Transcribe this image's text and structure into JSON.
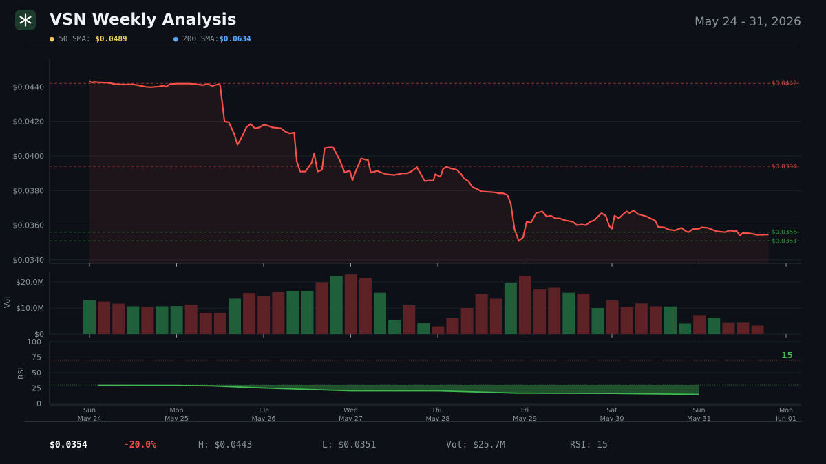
{
  "header": {
    "title": "VSN Weekly Analysis",
    "date_range": "May 24 - 31, 2026",
    "sma50_label": "50 SMA:",
    "sma50_value": "$0.0489",
    "sma200_label": "200 SMA:",
    "sma200_value": "$0.0634",
    "logo_icon": "asterisk-icon"
  },
  "colors": {
    "price_line": "#f85149",
    "up_volume": "#1f5f3a",
    "down_volume": "#5c2226",
    "rsi_line": "#3fb950",
    "sma50": "#f2cc60",
    "sma200": "#58a6ff"
  },
  "footer": {
    "price": "$0.0354",
    "change": "-20.0%",
    "high": "H: $0.0443",
    "low": "L: $0.0351",
    "volume": "Vol: $25.7M",
    "rsi": "RSI: 15"
  },
  "chart_data": [
    {
      "type": "line",
      "name": "price",
      "y_ticks": [
        "$0.0340",
        "$0.0360",
        "$0.0380",
        "$0.0400",
        "$0.0420",
        "$0.0440"
      ],
      "ylim": [
        0.0338,
        0.0456
      ],
      "xlim_days": [
        0,
        7.3
      ],
      "x_ticks": [
        {
          "day": "Sun",
          "date": "May 24"
        },
        {
          "day": "Mon",
          "date": "May 25"
        },
        {
          "day": "Tue",
          "date": "May 26"
        },
        {
          "day": "Wed",
          "date": "May 27"
        },
        {
          "day": "Thu",
          "date": "May 28"
        },
        {
          "day": "Fri",
          "date": "May 29"
        },
        {
          "day": "Sat",
          "date": "May 30"
        },
        {
          "day": "Sun",
          "date": "May 31"
        },
        {
          "day": "Mon",
          "date": "Jun 01"
        }
      ],
      "levels": [
        {
          "value": 0.0442,
          "label": "$0.0442",
          "color": "#f85149"
        },
        {
          "value": 0.0394,
          "label": "$0.0394",
          "color": "#f85149"
        },
        {
          "value": 0.0356,
          "label": "$0.0356",
          "color": "#3fb950"
        },
        {
          "value": 0.0351,
          "label": "$0.0351",
          "color": "#3fb950"
        }
      ],
      "points": [
        [
          0.0,
          0.0443
        ],
        [
          0.03,
          0.04425
        ],
        [
          0.06,
          0.04428
        ],
        [
          0.1,
          0.04426
        ],
        [
          0.15,
          0.04425
        ],
        [
          0.2,
          0.04424
        ],
        [
          0.25,
          0.0442
        ],
        [
          0.3,
          0.04415
        ],
        [
          0.4,
          0.04413
        ],
        [
          0.5,
          0.04414
        ],
        [
          0.55,
          0.0441
        ],
        [
          0.6,
          0.04405
        ],
        [
          0.65,
          0.044
        ],
        [
          0.7,
          0.04398
        ],
        [
          0.8,
          0.04402
        ],
        [
          0.85,
          0.04407
        ],
        [
          0.88,
          0.044
        ],
        [
          0.92,
          0.04415
        ],
        [
          1.0,
          0.04418
        ],
        [
          1.05,
          0.04418
        ],
        [
          1.15,
          0.04418
        ],
        [
          1.22,
          0.04415
        ],
        [
          1.3,
          0.0441
        ],
        [
          1.36,
          0.04416
        ],
        [
          1.41,
          0.04405
        ],
        [
          1.48,
          0.04415
        ],
        [
          1.5,
          0.0441
        ],
        [
          1.55,
          0.042
        ],
        [
          1.6,
          0.04195
        ],
        [
          1.66,
          0.0413
        ],
        [
          1.7,
          0.04065
        ],
        [
          1.75,
          0.0411
        ],
        [
          1.8,
          0.04165
        ],
        [
          1.85,
          0.04185
        ],
        [
          1.9,
          0.0416
        ],
        [
          1.95,
          0.04165
        ],
        [
          2.0,
          0.0418
        ],
        [
          2.05,
          0.04175
        ],
        [
          2.1,
          0.04165
        ],
        [
          2.2,
          0.0416
        ],
        [
          2.25,
          0.0414
        ],
        [
          2.3,
          0.0413
        ],
        [
          2.35,
          0.04135
        ],
        [
          2.38,
          0.0397
        ],
        [
          2.42,
          0.0391
        ],
        [
          2.48,
          0.0391
        ],
        [
          2.55,
          0.0396
        ],
        [
          2.58,
          0.04015
        ],
        [
          2.62,
          0.0391
        ],
        [
          2.67,
          0.0392
        ],
        [
          2.7,
          0.04045
        ],
        [
          2.76,
          0.0405
        ],
        [
          2.8,
          0.04048
        ],
        [
          2.88,
          0.0397
        ],
        [
          2.93,
          0.03905
        ],
        [
          2.99,
          0.03915
        ],
        [
          3.02,
          0.0386
        ],
        [
          3.06,
          0.03915
        ],
        [
          3.12,
          0.03985
        ],
        [
          3.2,
          0.03975
        ],
        [
          3.23,
          0.03905
        ],
        [
          3.28,
          0.0391
        ],
        [
          3.3,
          0.03915
        ],
        [
          3.35,
          0.03905
        ],
        [
          3.4,
          0.03895
        ],
        [
          3.5,
          0.0389
        ],
        [
          3.6,
          0.039
        ],
        [
          3.65,
          0.039
        ],
        [
          3.7,
          0.03912
        ],
        [
          3.76,
          0.03935
        ],
        [
          3.8,
          0.039
        ],
        [
          3.85,
          0.03855
        ],
        [
          3.9,
          0.03858
        ],
        [
          3.95,
          0.03858
        ],
        [
          3.97,
          0.03895
        ],
        [
          4.03,
          0.0388
        ],
        [
          4.06,
          0.03925
        ],
        [
          4.1,
          0.03938
        ],
        [
          4.15,
          0.03928
        ],
        [
          4.22,
          0.0392
        ],
        [
          4.27,
          0.03895
        ],
        [
          4.3,
          0.0387
        ],
        [
          4.35,
          0.03855
        ],
        [
          4.4,
          0.0382
        ],
        [
          4.45,
          0.0381
        ],
        [
          4.5,
          0.03795
        ],
        [
          4.6,
          0.03792
        ],
        [
          4.65,
          0.0379
        ],
        [
          4.7,
          0.03785
        ],
        [
          4.75,
          0.03785
        ],
        [
          4.8,
          0.03775
        ],
        [
          4.84,
          0.0372
        ],
        [
          4.88,
          0.0358
        ],
        [
          4.93,
          0.0351
        ],
        [
          4.98,
          0.0353
        ],
        [
          5.02,
          0.0362
        ],
        [
          5.07,
          0.03615
        ],
        [
          5.13,
          0.0367
        ],
        [
          5.2,
          0.0368
        ],
        [
          5.25,
          0.0365
        ],
        [
          5.3,
          0.03655
        ],
        [
          5.35,
          0.0364
        ],
        [
          5.4,
          0.0364
        ],
        [
          5.45,
          0.0363
        ],
        [
          5.55,
          0.0362
        ],
        [
          5.6,
          0.036
        ],
        [
          5.65,
          0.03605
        ],
        [
          5.7,
          0.036
        ],
        [
          5.75,
          0.0362
        ],
        [
          5.8,
          0.0363
        ],
        [
          5.83,
          0.03645
        ],
        [
          5.88,
          0.0367
        ],
        [
          5.93,
          0.03655
        ],
        [
          5.97,
          0.03595
        ],
        [
          6.0,
          0.0358
        ],
        [
          6.03,
          0.03655
        ],
        [
          6.08,
          0.0364
        ],
        [
          6.12,
          0.0366
        ],
        [
          6.17,
          0.0368
        ],
        [
          6.2,
          0.0367
        ],
        [
          6.25,
          0.03685
        ],
        [
          6.3,
          0.03665
        ],
        [
          6.4,
          0.0365
        ],
        [
          6.5,
          0.03625
        ],
        [
          6.53,
          0.0359
        ],
        [
          6.6,
          0.03588
        ],
        [
          6.65,
          0.03575
        ],
        [
          6.72,
          0.0357
        ],
        [
          6.8,
          0.03585
        ],
        [
          6.85,
          0.03565
        ],
        [
          6.88,
          0.0356
        ],
        [
          6.93,
          0.03578
        ],
        [
          7.0,
          0.0358
        ],
        [
          7.03,
          0.03588
        ],
        [
          7.1,
          0.03585
        ],
        [
          7.15,
          0.03575
        ],
        [
          7.2,
          0.03565
        ],
        [
          7.3,
          0.0356
        ],
        [
          7.35,
          0.0357
        ],
        [
          7.4,
          0.03565
        ],
        [
          7.43,
          0.03568
        ],
        [
          7.47,
          0.0354
        ],
        [
          7.5,
          0.03555
        ],
        [
          7.55,
          0.03555
        ],
        [
          7.62,
          0.0355
        ],
        [
          7.66,
          0.03545
        ],
        [
          7.72,
          0.03545
        ],
        [
          7.8,
          0.03546
        ]
      ]
    },
    {
      "type": "bar",
      "name": "volume",
      "ylabel": "Vol",
      "y_ticks": [
        "$0",
        "$10.0M",
        "$20.0M"
      ],
      "ylim": [
        0,
        24
      ],
      "values": [
        13.0,
        12.5,
        11.7,
        10.7,
        10.4,
        10.7,
        10.8,
        11.3,
        8.1,
        8.0,
        13.6,
        15.8,
        14.6,
        16.1,
        16.6,
        16.6,
        19.9,
        22.3,
        22.9,
        21.5,
        15.9,
        5.3,
        11.1,
        4.2,
        3.0,
        6.1,
        10.0,
        15.4,
        13.6,
        19.6,
        22.4,
        17.2,
        17.8,
        15.9,
        15.6,
        10.0,
        12.9,
        10.5,
        11.8,
        10.7,
        10.6,
        4.1,
        7.3,
        6.3,
        4.3,
        4.4,
        3.3
      ],
      "up": [
        1,
        0,
        0,
        1,
        0,
        1,
        1,
        0,
        0,
        0,
        1,
        0,
        0,
        0,
        1,
        1,
        0,
        1,
        0,
        0,
        1,
        1,
        0,
        1,
        0,
        0,
        0,
        0,
        0,
        1,
        0,
        0,
        0,
        1,
        0,
        1,
        0,
        0,
        0,
        0,
        1,
        1,
        0,
        1,
        0,
        0,
        0
      ]
    },
    {
      "type": "area",
      "name": "rsi",
      "ylabel": "RSI",
      "y_ticks": [
        "0",
        "25",
        "50",
        "75",
        "100"
      ],
      "ylim": [
        0,
        100
      ],
      "overbought": 70,
      "oversold": 30,
      "current_label": "15",
      "points": [
        [
          0.1,
          29.5
        ],
        [
          1.0,
          29.3
        ],
        [
          1.4,
          28.5
        ],
        [
          2.0,
          25
        ],
        [
          3.0,
          20.5
        ],
        [
          4.0,
          20.5
        ],
        [
          4.9,
          17
        ],
        [
          6.0,
          16.5
        ],
        [
          7.0,
          15
        ]
      ]
    }
  ]
}
